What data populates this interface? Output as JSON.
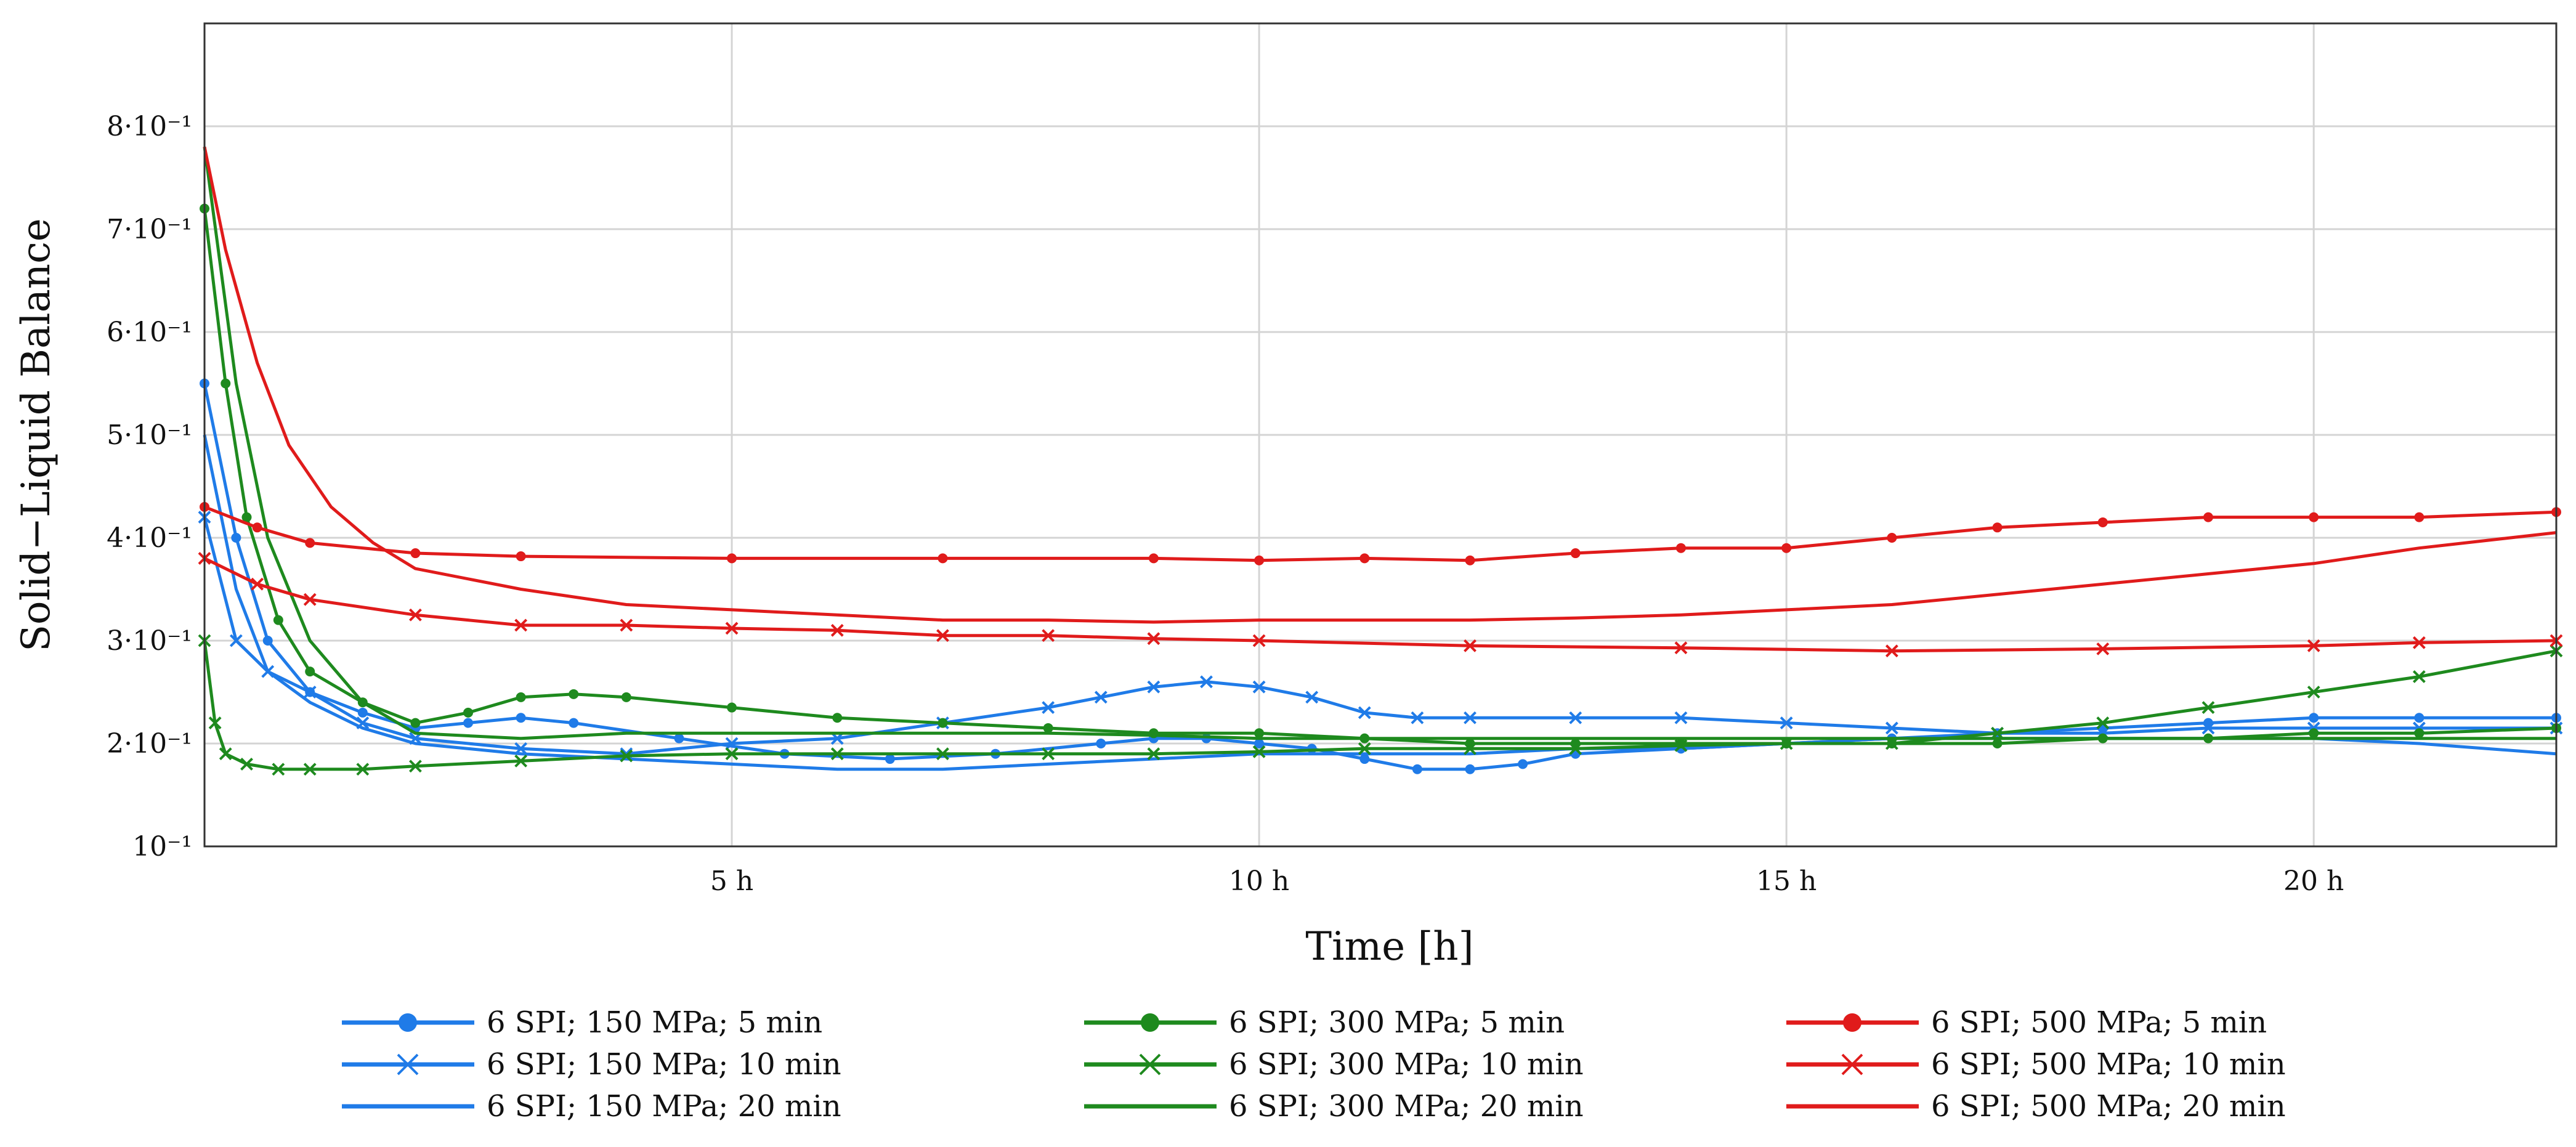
{
  "chart_data": {
    "type": "line",
    "title": "",
    "xlabel": "Time [h]",
    "ylabel": "Solid−Liquid Balance",
    "xlim": [
      0,
      22.3
    ],
    "ylim": [
      0.1,
      0.9
    ],
    "grid": true,
    "x_ticks": [
      {
        "value": 5,
        "label": "5 h"
      },
      {
        "value": 10,
        "label": "10 h"
      },
      {
        "value": 15,
        "label": "15 h"
      },
      {
        "value": 20,
        "label": "20 h"
      }
    ],
    "y_ticks": [
      {
        "value": 0.1,
        "label": "10⁻¹"
      },
      {
        "value": 0.2,
        "label": "2·10⁻¹"
      },
      {
        "value": 0.3,
        "label": "3·10⁻¹"
      },
      {
        "value": 0.4,
        "label": "4·10⁻¹"
      },
      {
        "value": 0.5,
        "label": "5·10⁻¹"
      },
      {
        "value": 0.6,
        "label": "6·10⁻¹"
      },
      {
        "value": 0.7,
        "label": "7·10⁻¹"
      },
      {
        "value": 0.8,
        "label": "8·10⁻¹"
      }
    ],
    "legend_position": "bottom",
    "series": [
      {
        "name": "6 SPI; 150 MPa; 5 min",
        "color": "#1f7be8",
        "marker": "dot",
        "x": [
          0,
          0.3,
          0.6,
          1.0,
          1.5,
          2.0,
          2.5,
          3.0,
          3.5,
          4.5,
          5.5,
          6.5,
          7.5,
          8.5,
          9.0,
          9.5,
          10.0,
          10.5,
          11.0,
          11.5,
          12.0,
          12.5,
          13.0,
          14.0,
          15.0,
          16.0,
          17.0,
          18.0,
          19.0,
          20.0,
          21.0,
          22.3
        ],
        "y": [
          0.55,
          0.4,
          0.3,
          0.25,
          0.23,
          0.215,
          0.22,
          0.225,
          0.22,
          0.205,
          0.19,
          0.185,
          0.19,
          0.2,
          0.205,
          0.205,
          0.2,
          0.195,
          0.185,
          0.175,
          0.175,
          0.18,
          0.19,
          0.195,
          0.2,
          0.205,
          0.21,
          0.215,
          0.22,
          0.225,
          0.225,
          0.225
        ]
      },
      {
        "name": "6 SPI; 150 MPa; 10 min",
        "color": "#1f7be8",
        "marker": "x",
        "x": [
          0,
          0.3,
          0.6,
          1.0,
          1.5,
          2.0,
          3.0,
          4.0,
          5.0,
          6.0,
          7.0,
          8.0,
          8.5,
          9.0,
          9.5,
          10.0,
          10.5,
          11.0,
          11.5,
          12.0,
          13.0,
          14.0,
          15.0,
          16.0,
          17.0,
          18.0,
          19.0,
          20.0,
          21.0,
          22.3
        ],
        "y": [
          0.42,
          0.3,
          0.27,
          0.25,
          0.22,
          0.205,
          0.195,
          0.19,
          0.2,
          0.205,
          0.22,
          0.235,
          0.245,
          0.255,
          0.26,
          0.255,
          0.245,
          0.23,
          0.225,
          0.225,
          0.225,
          0.225,
          0.22,
          0.215,
          0.21,
          0.21,
          0.215,
          0.215,
          0.215,
          0.215
        ]
      },
      {
        "name": "6 SPI; 150 MPa; 20 min",
        "color": "#1f7be8",
        "marker": "none",
        "x": [
          0,
          0.3,
          0.6,
          1.0,
          1.5,
          2.0,
          3.0,
          4.0,
          5.0,
          6.0,
          7.0,
          8.0,
          9.0,
          10.0,
          11.0,
          12.0,
          13.0,
          14.0,
          15.0,
          16.0,
          17.0,
          18.0,
          19.0,
          20.0,
          21.0,
          22.3
        ],
        "y": [
          0.5,
          0.35,
          0.27,
          0.24,
          0.215,
          0.2,
          0.19,
          0.185,
          0.18,
          0.175,
          0.175,
          0.18,
          0.185,
          0.19,
          0.19,
          0.19,
          0.195,
          0.195,
          0.2,
          0.205,
          0.205,
          0.205,
          0.205,
          0.205,
          0.2,
          0.19
        ]
      },
      {
        "name": "6 SPI; 300 MPa; 5 min",
        "color": "#1e8a1e",
        "marker": "dot",
        "x": [
          0,
          0.2,
          0.4,
          0.7,
          1.0,
          1.5,
          2.0,
          2.5,
          3.0,
          3.5,
          4.0,
          5.0,
          6.0,
          7.0,
          8.0,
          9.0,
          10.0,
          11.0,
          12.0,
          13.0,
          14.0,
          15.0,
          16.0,
          17.0,
          18.0,
          19.0,
          20.0,
          21.0,
          22.3
        ],
        "y": [
          0.72,
          0.55,
          0.42,
          0.32,
          0.27,
          0.24,
          0.22,
          0.23,
          0.245,
          0.248,
          0.245,
          0.235,
          0.225,
          0.22,
          0.215,
          0.21,
          0.21,
          0.205,
          0.2,
          0.2,
          0.2,
          0.2,
          0.2,
          0.2,
          0.205,
          0.205,
          0.21,
          0.21,
          0.215
        ]
      },
      {
        "name": "6 SPI; 300 MPa; 10 min",
        "color": "#1e8a1e",
        "marker": "x",
        "x": [
          0,
          0.1,
          0.2,
          0.4,
          0.7,
          1.0,
          1.5,
          2.0,
          3.0,
          4.0,
          5.0,
          6.0,
          7.0,
          8.0,
          9.0,
          10.0,
          11.0,
          12.0,
          13.0,
          14.0,
          15.0,
          16.0,
          17.0,
          18.0,
          19.0,
          20.0,
          21.0,
          22.3
        ],
        "y": [
          0.3,
          0.22,
          0.19,
          0.18,
          0.175,
          0.175,
          0.175,
          0.178,
          0.183,
          0.188,
          0.19,
          0.19,
          0.19,
          0.19,
          0.19,
          0.192,
          0.195,
          0.195,
          0.195,
          0.198,
          0.2,
          0.2,
          0.21,
          0.22,
          0.235,
          0.25,
          0.265,
          0.29
        ]
      },
      {
        "name": "6 SPI; 300 MPa; 20 min",
        "color": "#1e8a1e",
        "marker": "none",
        "x": [
          0,
          0.3,
          0.6,
          1.0,
          1.5,
          2.0,
          3.0,
          4.0,
          5.0,
          6.0,
          7.0,
          8.0,
          9.0,
          10.0,
          11.0,
          12.0,
          13.0,
          14.0,
          15.0,
          16.0,
          17.0,
          18.0,
          19.0,
          20.0,
          21.0,
          22.3
        ],
        "y": [
          0.78,
          0.55,
          0.4,
          0.3,
          0.24,
          0.21,
          0.205,
          0.21,
          0.21,
          0.21,
          0.21,
          0.21,
          0.208,
          0.205,
          0.205,
          0.205,
          0.205,
          0.205,
          0.205,
          0.205,
          0.205,
          0.205,
          0.205,
          0.205,
          0.205,
          0.205
        ]
      },
      {
        "name": "6 SPI; 500 MPa; 5 min",
        "color": "#e01b1b",
        "marker": "dot",
        "x": [
          0,
          0.5,
          1.0,
          2.0,
          3.0,
          5.0,
          7.0,
          9.0,
          10.0,
          11.0,
          12.0,
          13.0,
          14.0,
          15.0,
          16.0,
          17.0,
          18.0,
          19.0,
          20.0,
          21.0,
          22.3
        ],
        "y": [
          0.43,
          0.41,
          0.395,
          0.385,
          0.382,
          0.38,
          0.38,
          0.38,
          0.378,
          0.38,
          0.378,
          0.385,
          0.39,
          0.39,
          0.4,
          0.41,
          0.415,
          0.42,
          0.42,
          0.42,
          0.425
        ]
      },
      {
        "name": "6 SPI; 500 MPa; 10 min",
        "color": "#e01b1b",
        "marker": "x",
        "x": [
          0,
          0.5,
          1.0,
          2.0,
          3.0,
          4.0,
          5.0,
          6.0,
          7.0,
          8.0,
          9.0,
          10.0,
          12.0,
          14.0,
          16.0,
          18.0,
          20.0,
          21.0,
          22.3
        ],
        "y": [
          0.38,
          0.355,
          0.34,
          0.325,
          0.315,
          0.315,
          0.312,
          0.31,
          0.305,
          0.305,
          0.302,
          0.3,
          0.295,
          0.293,
          0.29,
          0.292,
          0.295,
          0.298,
          0.3
        ]
      },
      {
        "name": "6 SPI; 500 MPa; 20 min",
        "color": "#e01b1b",
        "marker": "none",
        "x": [
          0,
          0.2,
          0.5,
          0.8,
          1.2,
          1.6,
          2.0,
          3.0,
          4.0,
          5.0,
          6.0,
          7.0,
          8.0,
          9.0,
          10.0,
          11.0,
          12.0,
          13.0,
          14.0,
          15.0,
          16.0,
          17.0,
          18.0,
          19.0,
          20.0,
          21.0,
          22.3
        ],
        "y": [
          0.78,
          0.68,
          0.57,
          0.49,
          0.43,
          0.395,
          0.37,
          0.35,
          0.335,
          0.33,
          0.325,
          0.32,
          0.32,
          0.318,
          0.32,
          0.32,
          0.32,
          0.322,
          0.325,
          0.33,
          0.335,
          0.345,
          0.355,
          0.365,
          0.375,
          0.39,
          0.405
        ]
      }
    ]
  }
}
